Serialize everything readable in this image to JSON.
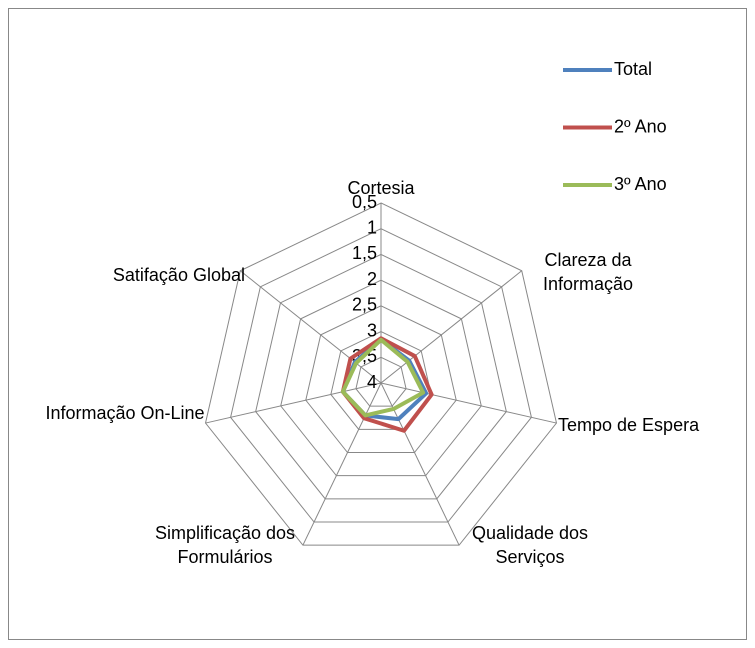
{
  "chart_data": {
    "type": "radar",
    "categories": [
      "Cortesia",
      "Clareza da Informação",
      "Tempo de Espera",
      "Qualidade dos Serviços",
      "Simplificação dos Formulários",
      "Informação On-Line",
      "Satifação Global"
    ],
    "series": [
      {
        "name": "Total",
        "color": "#4f81bd",
        "values": [
          3.15,
          3.3,
          3.1,
          3.22,
          3.3,
          3.24,
          3.35
        ]
      },
      {
        "name": "2º Ano",
        "color": "#c0504d",
        "values": [
          3.13,
          3.16,
          2.99,
          2.97,
          3.24,
          3.24,
          3.24
        ]
      },
      {
        "name": "3º Ano",
        "color": "#9bbb59",
        "values": [
          3.16,
          3.34,
          3.16,
          3.44,
          3.3,
          3.24,
          3.38
        ]
      }
    ],
    "rlim": [
      4,
      0.5
    ],
    "rticks": [
      {
        "value": 0.5,
        "label": "0,5"
      },
      1,
      {
        "value": 1.5,
        "label": "1,5"
      },
      2,
      {
        "value": 2.5,
        "label": "2,5"
      },
      3,
      {
        "value": 3.5,
        "label": "3,5"
      },
      4
    ],
    "grid": true,
    "legend": "upper right"
  }
}
